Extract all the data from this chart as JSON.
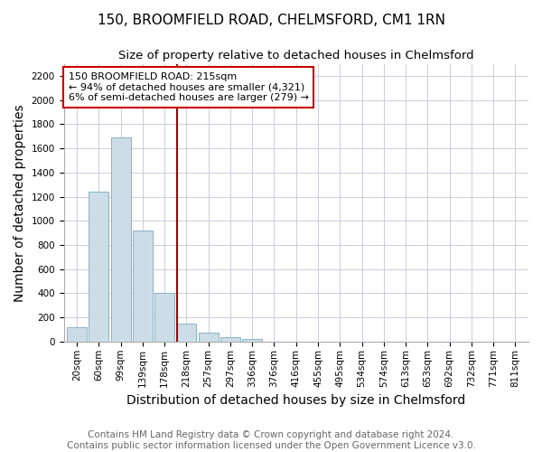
{
  "title": "150, BROOMFIELD ROAD, CHELMSFORD, CM1 1RN",
  "subtitle": "Size of property relative to detached houses in Chelmsford",
  "xlabel": "Distribution of detached houses by size in Chelmsford",
  "ylabel": "Number of detached properties",
  "footer_line1": "Contains HM Land Registry data © Crown copyright and database right 2024.",
  "footer_line2": "Contains public sector information licensed under the Open Government Licence v3.0.",
  "bar_labels": [
    "20sqm",
    "60sqm",
    "99sqm",
    "139sqm",
    "178sqm",
    "218sqm",
    "257sqm",
    "297sqm",
    "336sqm",
    "376sqm",
    "416sqm",
    "455sqm",
    "495sqm",
    "534sqm",
    "574sqm",
    "613sqm",
    "653sqm",
    "692sqm",
    "732sqm",
    "771sqm",
    "811sqm"
  ],
  "bar_values": [
    120,
    1240,
    1690,
    920,
    400,
    150,
    75,
    40,
    22,
    0,
    0,
    0,
    0,
    0,
    0,
    0,
    0,
    0,
    0,
    0,
    0
  ],
  "bar_color": "#ccdde8",
  "bar_edge_color": "#7aaabb",
  "marker_line_color": "#aa0000",
  "annotation_text_line1": "150 BROOMFIELD ROAD: 215sqm",
  "annotation_text_line2": "← 94% of detached houses are smaller (4,321)",
  "annotation_text_line3": "6% of semi-detached houses are larger (279) →",
  "annotation_box_color": "#cc0000",
  "ylim": [
    0,
    2300
  ],
  "yticks": [
    0,
    200,
    400,
    600,
    800,
    1000,
    1200,
    1400,
    1600,
    1800,
    2000,
    2200
  ],
  "bg_color": "#ffffff",
  "grid_color": "#ccccdd",
  "title_fontsize": 11,
  "subtitle_fontsize": 9.5,
  "axis_label_fontsize": 10,
  "tick_fontsize": 7.5,
  "footer_fontsize": 7.5,
  "marker_bar_index": 5
}
